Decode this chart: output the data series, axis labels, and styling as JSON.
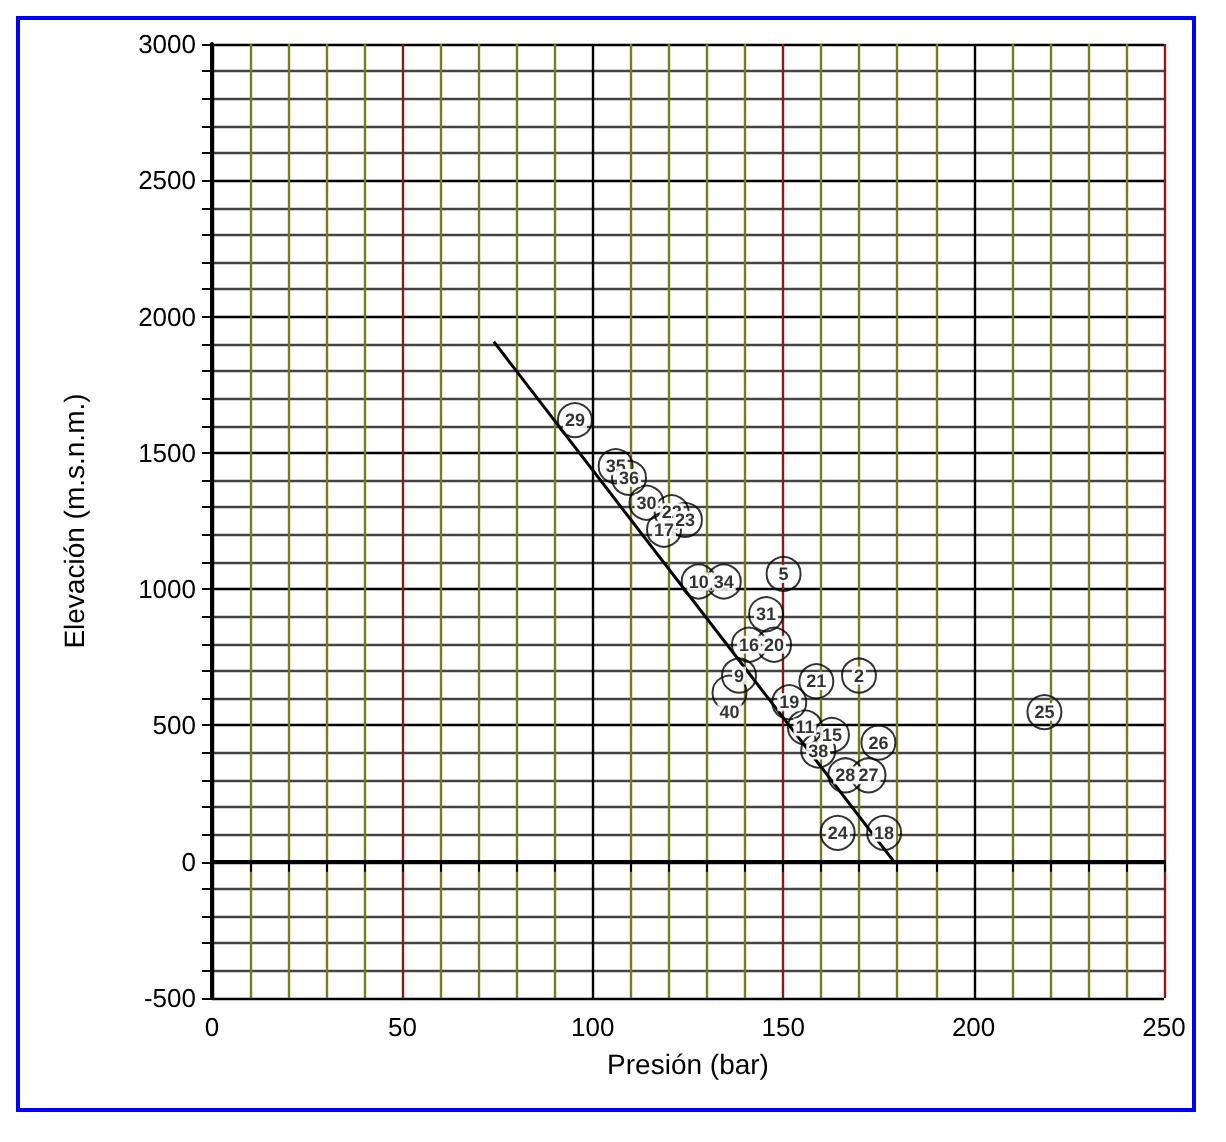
{
  "chart_data": {
    "type": "scatter",
    "xlabel": "Presión (bar)",
    "ylabel": "Elevación (m.s.n.m.)",
    "xlim": [
      0,
      250
    ],
    "ylim": [
      -500,
      3000
    ],
    "xticks": [
      0,
      {
        "value": 10,
        "label": null
      },
      {
        "value": 20,
        "label": null
      },
      {
        "value": 30,
        "label": null
      },
      {
        "value": 40,
        "label": null
      },
      50,
      {
        "value": 60,
        "label": null
      },
      {
        "value": 70,
        "label": null
      },
      {
        "value": 80,
        "label": null
      },
      {
        "value": 90,
        "label": null
      },
      100,
      {
        "value": 110,
        "label": null
      },
      {
        "value": 120,
        "label": null
      },
      {
        "value": 130,
        "label": null
      },
      {
        "value": 140,
        "label": null
      },
      150,
      {
        "value": 160,
        "label": null
      },
      {
        "value": 170,
        "label": null
      },
      {
        "value": 180,
        "label": null
      },
      {
        "value": 190,
        "label": null
      },
      200,
      {
        "value": 210,
        "label": null
      },
      {
        "value": 220,
        "label": null
      },
      {
        "value": 230,
        "label": null
      },
      {
        "value": 240,
        "label": null
      },
      250
    ],
    "yticks": [
      -500,
      {
        "value": -400,
        "label": null
      },
      {
        "value": -300,
        "label": null
      },
      {
        "value": -200,
        "label": null
      },
      {
        "value": -100,
        "label": null
      },
      0,
      {
        "value": 100,
        "label": null
      },
      {
        "value": 200,
        "label": null
      },
      {
        "value": 300,
        "label": null
      },
      {
        "value": 400,
        "label": null
      },
      500,
      {
        "value": 600,
        "label": null
      },
      {
        "value": 700,
        "label": null
      },
      {
        "value": 800,
        "label": null
      },
      {
        "value": 900,
        "label": null
      },
      1000,
      {
        "value": 1100,
        "label": null
      },
      {
        "value": 1200,
        "label": null
      },
      {
        "value": 1300,
        "label": null
      },
      {
        "value": 1400,
        "label": null
      },
      1500,
      {
        "value": 1600,
        "label": null
      },
      {
        "value": 1700,
        "label": null
      },
      {
        "value": 1800,
        "label": null
      },
      {
        "value": 1900,
        "label": null
      },
      2000,
      {
        "value": 2100,
        "label": null
      },
      {
        "value": 2200,
        "label": null
      },
      {
        "value": 2300,
        "label": null
      },
      {
        "value": 2400,
        "label": null
      },
      2500,
      {
        "value": 2600,
        "label": null
      },
      {
        "value": 2700,
        "label": null
      },
      {
        "value": 2800,
        "label": null
      },
      {
        "value": 2900,
        "label": null
      },
      3000
    ],
    "grid": true,
    "series": [
      {
        "type": "scatter",
        "marker": "circle",
        "color": "#000000",
        "x": [
          95.3,
          106.0,
          109.5,
          114.1,
          120.7,
          124.2,
          118.7,
          127.8,
          134.4,
          150.1,
          145.5,
          141.0,
          147.6,
          138.4,
          135.9,
          158.7,
          169.9,
          151.6,
          155.7,
          162.8,
          159.2,
          175.0,
          166.3,
          172.4,
          164.3,
          176.5,
          218.6
        ],
        "values": [
          1620,
          1451,
          1408,
          1317,
          1282,
          1254,
          1218,
          1028,
          1028,
          1056,
          908,
          796,
          796,
          683,
          620,
          662,
          683,
          585,
          493,
          465,
          408,
          437,
          317,
          317,
          106,
          106,
          549
        ]
      },
      {
        "type": "line",
        "marker": "none",
        "color": "#000000",
        "x": [
          74.0,
          179.5
        ],
        "values": [
          1908,
          -7
        ]
      }
    ],
    "annotations": [
      {
        "text": "29",
        "x": 95.3,
        "y": 1620
      },
      {
        "text": "35",
        "x": 106.0,
        "y": 1451
      },
      {
        "text": "36",
        "x": 109.5,
        "y": 1408
      },
      {
        "text": "30",
        "x": 114.1,
        "y": 1317
      },
      {
        "text": "22",
        "x": 120.7,
        "y": 1282
      },
      {
        "text": "23",
        "x": 124.2,
        "y": 1254
      },
      {
        "text": "17",
        "x": 118.7,
        "y": 1218
      },
      {
        "text": "10",
        "x": 127.8,
        "y": 1028
      },
      {
        "text": "34",
        "x": 134.4,
        "y": 1028
      },
      {
        "text": "5",
        "x": 150.1,
        "y": 1056
      },
      {
        "text": "31",
        "x": 145.5,
        "y": 908
      },
      {
        "text": "16",
        "x": 141.0,
        "y": 796
      },
      {
        "text": "20",
        "x": 147.6,
        "y": 796
      },
      {
        "text": "9",
        "x": 138.4,
        "y": 683
      },
      {
        "text": "40",
        "x": 135.9,
        "y": 549
      },
      {
        "text": "21",
        "x": 158.7,
        "y": 662
      },
      {
        "text": "2",
        "x": 169.9,
        "y": 683
      },
      {
        "text": "19",
        "x": 151.6,
        "y": 585
      },
      {
        "text": "11",
        "x": 155.7,
        "y": 493
      },
      {
        "text": "15",
        "x": 162.8,
        "y": 465
      },
      {
        "text": "38",
        "x": 159.2,
        "y": 408
      },
      {
        "text": "26",
        "x": 175.0,
        "y": 437
      },
      {
        "text": "28",
        "x": 166.3,
        "y": 317
      },
      {
        "text": "27",
        "x": 172.4,
        "y": 317
      },
      {
        "text": "24",
        "x": 164.3,
        "y": 106
      },
      {
        "text": "18",
        "x": 176.5,
        "y": 106
      },
      {
        "text": "25",
        "x": 218.6,
        "y": 549
      }
    ]
  }
}
